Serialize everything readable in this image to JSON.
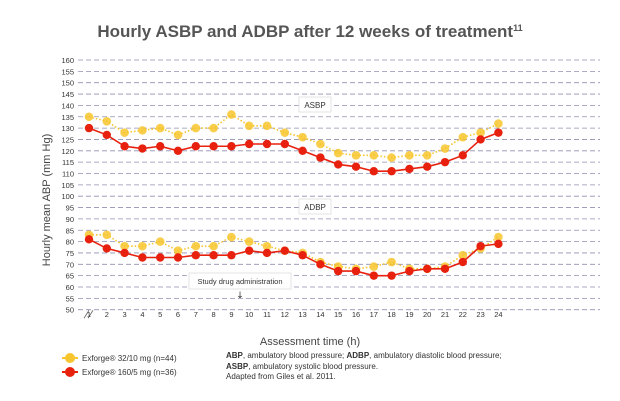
{
  "chart_data": {
    "type": "line",
    "title": "Hourly ASBP and ADBP after 12 weeks of treatment",
    "title_superscript": "11",
    "xlabel": "Assessment time (h)",
    "ylabel": "Hourly mean ABP (mm Hg)",
    "ylim": [
      50,
      160
    ],
    "y_ticks": [
      50,
      55,
      60,
      65,
      70,
      75,
      80,
      85,
      90,
      95,
      100,
      105,
      110,
      115,
      120,
      125,
      130,
      135,
      140,
      145,
      150,
      155,
      160
    ],
    "y_axis_break": true,
    "grid": "dashed horizontal",
    "categories": [
      1,
      2,
      3,
      4,
      5,
      6,
      7,
      8,
      9,
      10,
      11,
      12,
      13,
      14,
      15,
      16,
      17,
      18,
      19,
      20,
      21,
      22,
      23,
      24
    ],
    "series": [
      {
        "name": "Exforge® 32/10 mg (n=44)",
        "color": "#f7c52d",
        "style": "dotted",
        "asbp": [
          135,
          133,
          128,
          129,
          130,
          127,
          130,
          130,
          136,
          131,
          131,
          128,
          126,
          123,
          119,
          118,
          118,
          117,
          118,
          118,
          121,
          126,
          128,
          132
        ],
        "adbp": [
          83,
          83,
          78,
          78,
          80,
          76,
          78,
          78,
          82,
          80,
          78,
          76,
          75,
          71,
          69,
          68,
          69,
          71,
          68,
          68,
          69,
          74,
          77,
          82
        ]
      },
      {
        "name": "Exforge® 160/5 mg (n=36)",
        "color": "#e8210f",
        "style": "solid",
        "asbp": [
          130,
          127,
          122,
          121,
          122,
          120,
          122,
          122,
          122,
          123,
          123,
          123,
          120,
          117,
          114,
          113,
          111,
          111,
          112,
          113,
          115,
          118,
          125,
          128
        ],
        "adbp": [
          81,
          77,
          75,
          73,
          73,
          73,
          74,
          74,
          74,
          76,
          75,
          76,
          74,
          70,
          67,
          67,
          65,
          65,
          67,
          68,
          68,
          71,
          78,
          79
        ]
      }
    ],
    "annotations": {
      "asbp_label": "ASBP",
      "adbp_label": "ADBP",
      "study_drug": "Study drug administration",
      "study_drug_arrow": "↓"
    }
  },
  "legend": {
    "items": [
      {
        "label": "Exforge® 32/10 mg (n=44)",
        "color": "#f7c52d"
      },
      {
        "label": "Exforge® 160/5 mg (n=36)",
        "color": "#e8210f"
      }
    ]
  },
  "footnote": {
    "line1_b1": "ABP",
    "line1_t1": ", ambulatory blood pressure; ",
    "line1_b2": "ADBP",
    "line1_t2": ", ambulatory diastolic blood pressure;",
    "line2_b": "ASBP",
    "line2_t": ", ambulatory systolic blood pressure.",
    "line3": "Adapted from Giles et al. 2011."
  }
}
